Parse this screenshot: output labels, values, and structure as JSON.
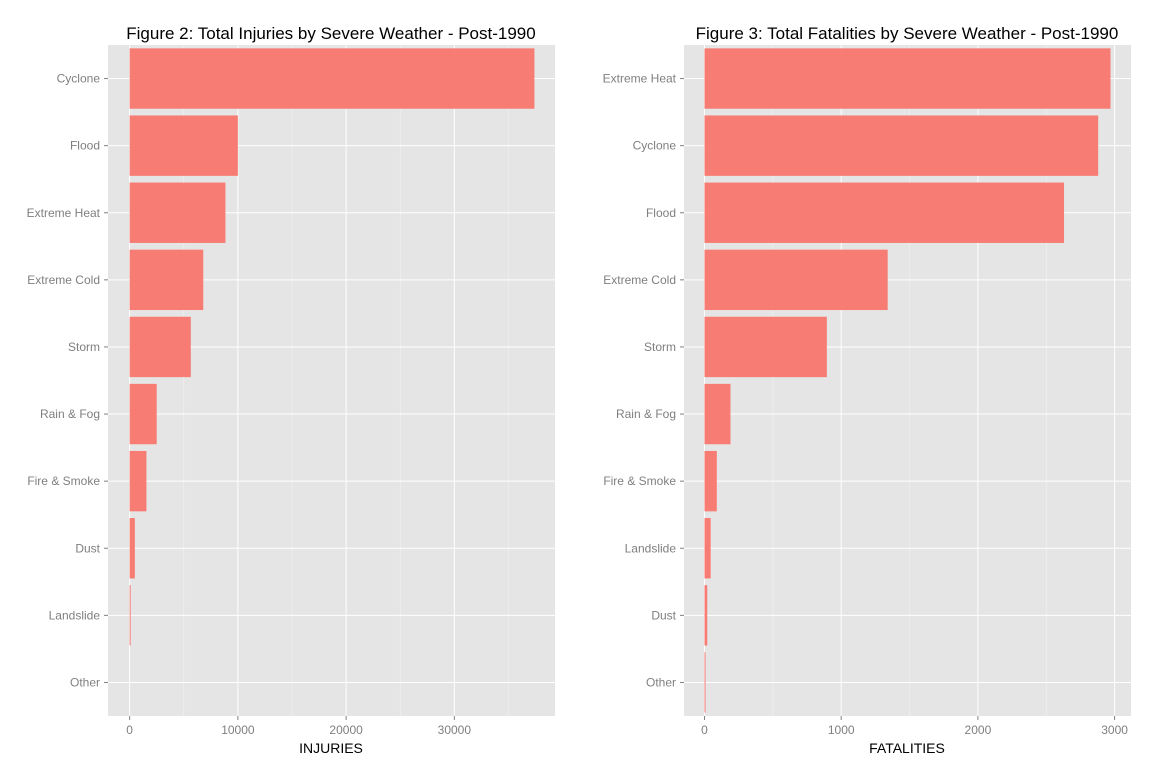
{
  "chart_data": [
    {
      "type": "bar",
      "orientation": "horizontal",
      "title": "Figure 2: Total Injuries by Severe Weather - Post-1990",
      "xlabel": "INJURIES",
      "ylabel": "",
      "categories": [
        "Cyclone",
        "Flood",
        "Extreme Heat",
        "Extreme Cold",
        "Storm",
        "Rain & Fog",
        "Fire & Smoke",
        "Dust",
        "Landslide",
        "Other"
      ],
      "values": [
        37400,
        10000,
        8850,
        6800,
        5650,
        2500,
        1550,
        480,
        70,
        0
      ],
      "xlim": [
        -2000,
        39300
      ],
      "xticks": [
        0,
        10000,
        20000,
        30000
      ],
      "xtick_labels": [
        "0",
        "10000",
        "20000",
        "30000"
      ],
      "bar_color": "#f8766d",
      "panel_color": "#e5e5e5",
      "grid": true,
      "legend": "none"
    },
    {
      "type": "bar",
      "orientation": "horizontal",
      "title": "Figure 3: Total Fatalities by Severe Weather - Post-1990",
      "xlabel": "FATALITIES",
      "ylabel": "",
      "categories": [
        "Extreme Heat",
        "Cyclone",
        "Flood",
        "Extreme Cold",
        "Storm",
        "Rain & Fog",
        "Fire & Smoke",
        "Landslide",
        "Dust",
        "Other"
      ],
      "values": [
        2970,
        2880,
        2630,
        1340,
        895,
        190,
        90,
        45,
        20,
        5
      ],
      "xlim": [
        -150,
        3120
      ],
      "xticks": [
        0,
        1000,
        2000,
        3000
      ],
      "xtick_labels": [
        "0",
        "1000",
        "2000",
        "3000"
      ],
      "bar_color": "#f8766d",
      "panel_color": "#e5e5e5",
      "grid": true,
      "legend": "none"
    }
  ]
}
